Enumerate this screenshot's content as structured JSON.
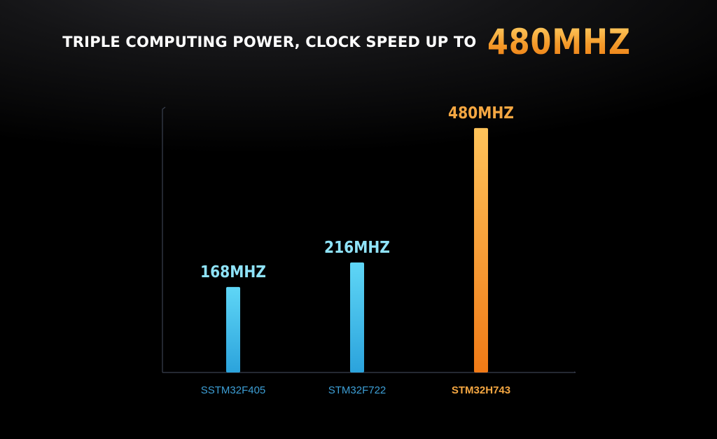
{
  "headline": {
    "text": "TRIPLE COMPUTING POWER, CLOCK SPEED UP TO",
    "highlight": "480MHZ"
  },
  "chart_data": {
    "type": "bar",
    "categories": [
      "SSTM32F405",
      "STM32F722",
      "STM32H743"
    ],
    "values": [
      168,
      216,
      480
    ],
    "value_unit": "MHZ",
    "data_labels": [
      "168MHZ",
      "216MHZ",
      "480MHZ"
    ],
    "title": "",
    "xlabel": "",
    "ylabel": "",
    "ylim": [
      0,
      550
    ],
    "grid": false,
    "legend": "none",
    "colors": {
      "standard_top": "#5fd6f6",
      "standard_bottom": "#2ba3dc",
      "highlight_top": "#ffc35a",
      "highlight_bottom": "#f07a16",
      "standard_label": "#8fe3f9",
      "highlight_label": "#f5a742",
      "standard_category": "#3d9fd6",
      "highlight_category": "#f5a742",
      "axis": "#3a4150"
    },
    "highlight_index": 2
  }
}
